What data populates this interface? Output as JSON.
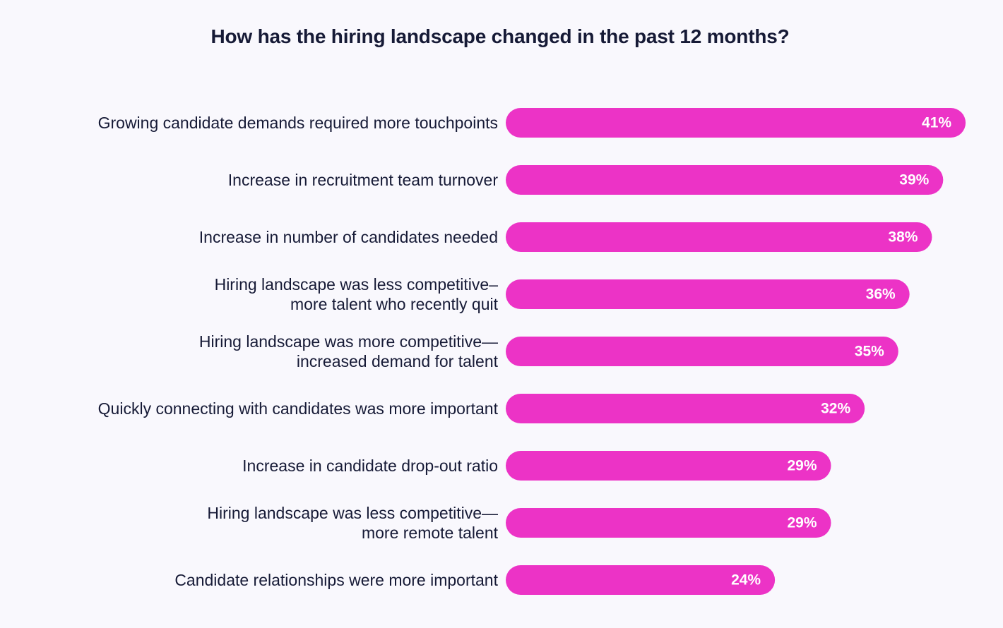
{
  "chart_data": {
    "type": "bar",
    "orientation": "horizontal",
    "title": "How has the hiring landscape changed in the past 12 months?",
    "bar_color": "#ec33c6",
    "value_suffix": "%",
    "grid": false,
    "legend": "none",
    "categories": [
      [
        "Growing candidate demands required more touchpoints"
      ],
      [
        "Increase in recruitment team turnover"
      ],
      [
        "Increase in number of candidates needed"
      ],
      [
        "Hiring landscape was less competitive–",
        "more talent who recently quit"
      ],
      [
        "Hiring landscape was more competitive—",
        "increased demand for talent"
      ],
      [
        "Quickly connecting with candidates was more important"
      ],
      [
        "Increase in candidate drop-out ratio"
      ],
      [
        "Hiring landscape was less competitive—",
        "more remote talent"
      ],
      [
        "Candidate relationships were more important"
      ]
    ],
    "values": [
      41,
      39,
      38,
      36,
      35,
      32,
      29,
      29,
      24
    ],
    "value_labels": [
      "41%",
      "39%",
      "38%",
      "36%",
      "35%",
      "32%",
      "29%",
      "29%",
      "24%"
    ]
  }
}
